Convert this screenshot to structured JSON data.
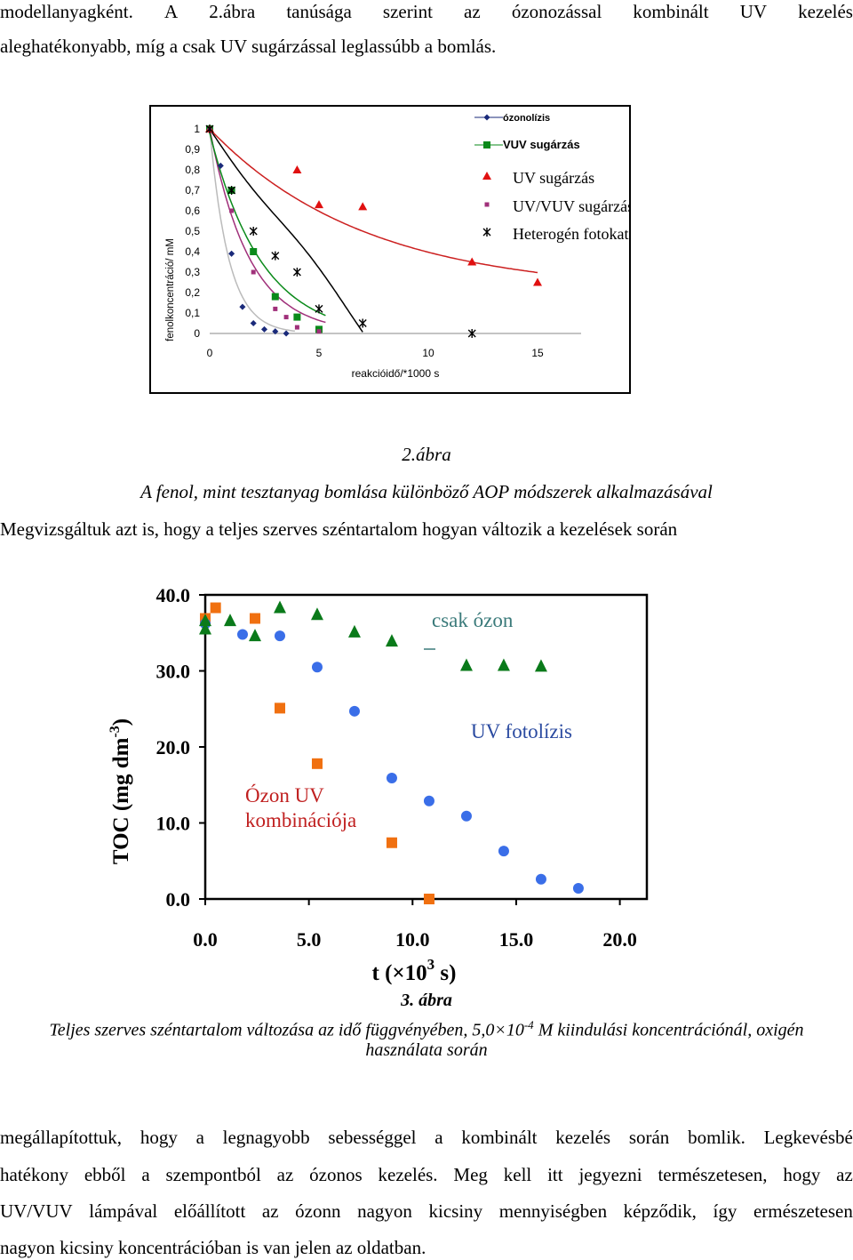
{
  "intro": {
    "line1_words": [
      "modellanyagként.",
      "A",
      "2.ábra",
      "tanúsága",
      "szerint",
      "az",
      "ózonozással",
      "kombinált",
      "UV",
      "kezelés"
    ],
    "line2": "aleghatékonyabb, míg a csak UV sugárzással leglassúbb a bomlás."
  },
  "fig2": {
    "ylabel": "fenolkoncentráció/ mM",
    "xlabel": "reakcióidő/*1000 s",
    "yticks": [
      "1",
      "0,9",
      "0,8",
      "0,7",
      "0,6",
      "0,5",
      "0,4",
      "0,3",
      "0,2",
      "0,1",
      "0"
    ],
    "xticks": [
      "0",
      "5",
      "10",
      "15"
    ],
    "legend": [
      "ózonolízis",
      "VUV sugárzás",
      "UV sugárzás",
      "UV/VUV sugárzás",
      "Heterogén fotokatalízis"
    ],
    "caption_num": "2.ábra",
    "caption": "A fenol, mint tesztanyag bomlása különböző AOP módszerek alkalmazásával"
  },
  "mid_text": "Megvizsgáltuk azt is, hogy a teljes szerves széntartalom hogyan változik a kezelések során",
  "fig3": {
    "ylabel": "TOC (mg dm",
    "ylabel_sup": "-3",
    "ylabel_end": ")",
    "yticks": [
      "40.0",
      "30.0",
      "20.0",
      "10.0",
      "0.0"
    ],
    "xticks": [
      "0.0",
      "5.0",
      "10.0",
      "15.0",
      "20.0"
    ],
    "xlabel": "t (×10",
    "xlabel_sup": "3",
    "xlabel_end": " s)",
    "label_ozone": "csak ózon",
    "label_uv": "UV fotolízis",
    "label_combo_1": "Ózon UV",
    "label_combo_2": "kombinációja",
    "caption_num": "3. ábra",
    "caption_a": "Teljes szerves széntartalom változása az idő függvényében, 5,0×10",
    "caption_sup": "-4",
    "caption_b": " M kiindulási koncentrációnál,  oxigén",
    "caption_c": "használata során"
  },
  "outro": {
    "line1_words": [
      "megállapítottuk,",
      "hogy",
      "a",
      "legnagyobb",
      "sebességgel",
      "a",
      "kombinált",
      "kezelés",
      "során",
      "bomlik.",
      "Legkevésbé"
    ],
    "line2_words": [
      "hatékony",
      "ebből",
      "a",
      "szempontból",
      "az",
      "ózonos",
      "kezelés.",
      "Meg",
      "kell",
      "itt",
      "jegyezni",
      "természetesen,",
      "hogy",
      "az"
    ],
    "line3_words": [
      "UV/VUV",
      "lámpával",
      "előállított",
      "az",
      "ózonn",
      "nagyon",
      "kicsiny",
      "mennyiségben",
      "képződik,",
      "így",
      "ermészetesen"
    ],
    "line4": "nagyon kicsiny koncentrációban is van jelen az oldatban."
  },
  "colors": {
    "ozonolysis": "#1a2a7a",
    "vuv": "#0a8a1a",
    "uv": "#e01010",
    "uv_vuv": "#a0307a",
    "hetero": "#000000",
    "toc_ozone": "#0a7a1a",
    "toc_uv": "#3a6ee8",
    "toc_combo": "#f07010",
    "label_ozone": "#3a7a7a",
    "label_uv": "#2a4aa0",
    "label_combo": "#c02020"
  },
  "chart_data": [
    {
      "type": "scatter",
      "xlabel": "reakcióidő/*1000 s",
      "ylabel": "fenolkoncentráció/ mM",
      "xlim": [
        0,
        17
      ],
      "ylim": [
        0,
        1
      ],
      "series": [
        {
          "name": "ózonolízis",
          "x": [
            0,
            0.5,
            1,
            1.5,
            2,
            2.5,
            3,
            3.5
          ],
          "y": [
            1,
            0.82,
            0.39,
            0.13,
            0.05,
            0.02,
            0.01,
            0.0
          ]
        },
        {
          "name": "VUV sugárzás",
          "x": [
            0,
            1,
            2,
            3,
            4,
            5
          ],
          "y": [
            1,
            0.7,
            0.4,
            0.18,
            0.08,
            0.02
          ]
        },
        {
          "name": "UV sugárzás",
          "x": [
            0,
            4,
            5,
            7,
            12,
            15
          ],
          "y": [
            1,
            0.8,
            0.63,
            0.62,
            0.35,
            0.25
          ]
        },
        {
          "name": "UV/VUV sugárzás",
          "x": [
            0,
            1,
            2,
            3,
            3.5,
            4,
            5
          ],
          "y": [
            1,
            0.6,
            0.3,
            0.12,
            0.08,
            0.03,
            0.01
          ]
        },
        {
          "name": "Heterogén fotokatalízis",
          "x": [
            0,
            1,
            2,
            3,
            4,
            5,
            7,
            12
          ],
          "y": [
            1,
            0.7,
            0.5,
            0.38,
            0.3,
            0.12,
            0.05,
            0.0
          ]
        }
      ]
    },
    {
      "type": "scatter",
      "xlabel": "t (×10^3 s)",
      "ylabel": "TOC (mg dm^-3)",
      "xlim": [
        0,
        21
      ],
      "ylim": [
        0,
        40
      ],
      "series": [
        {
          "name": "csak ózon",
          "x": [
            0,
            0,
            1.2,
            2.4,
            3.6,
            5.4,
            7.2,
            9,
            12.6,
            14.4,
            16.2
          ],
          "y": [
            35.5,
            36.6,
            36.6,
            34.6,
            38.3,
            37.4,
            35.1,
            33.9,
            30.7,
            30.7,
            30.6
          ]
        },
        {
          "name": "UV fotolízis",
          "x": [
            0,
            1.8,
            3.6,
            5.4,
            7.2,
            9,
            10.8,
            12.6,
            14.4,
            16.2,
            18
          ],
          "y": [
            36.2,
            34.8,
            34.6,
            30.5,
            24.7,
            15.9,
            12.9,
            10.9,
            6.3,
            2.6,
            1.4
          ]
        },
        {
          "name": "Ózon UV kombinációja",
          "x": [
            0,
            0.5,
            2.4,
            3.6,
            5.4,
            9,
            10.8
          ],
          "y": [
            36.9,
            38.3,
            36.9,
            25.1,
            17.8,
            7.4,
            0.0
          ]
        }
      ]
    }
  ]
}
